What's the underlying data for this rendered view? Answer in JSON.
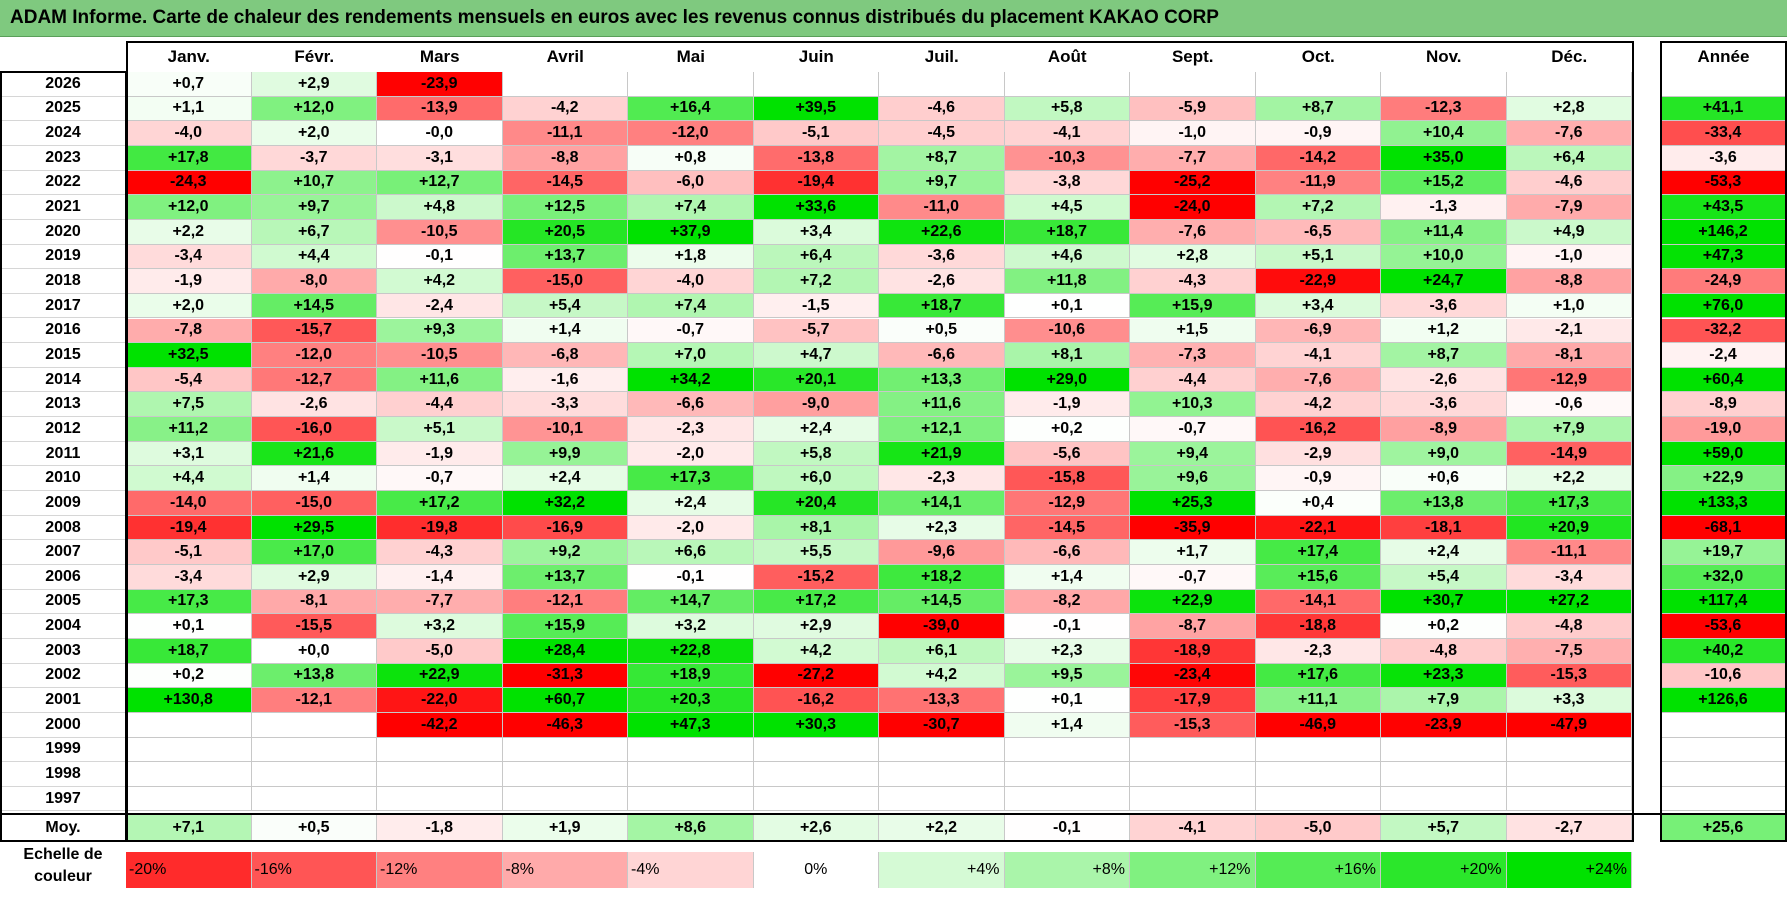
{
  "title": "ADAM Informe. Carte de chaleur des rendements mensuels en euros avec les revenus connus distribués du placement KAKAO CORP",
  "colors": {
    "title_bg": "#7fc97f",
    "neg_max": "#ff0000",
    "pos_max": "#00e000",
    "neutral": "#ffffff"
  },
  "chart_data": {
    "type": "heatmap",
    "title": "ADAM Informe. Carte de chaleur des rendements mensuels en euros avec les revenus connus distribués du placement KAKAO CORP",
    "months": [
      "Janv.",
      "Févr.",
      "Mars",
      "Avril",
      "Mai",
      "Juin",
      "Juil.",
      "Août",
      "Sept.",
      "Oct.",
      "Nov.",
      "Déc."
    ],
    "annual_header": "Année",
    "rows": [
      {
        "year": "2026",
        "values": [
          "+0,7",
          "+2,9",
          "-23,9",
          "",
          "",
          "",
          "",
          "",
          "",
          "",
          "",
          ""
        ],
        "annual": ""
      },
      {
        "year": "2025",
        "values": [
          "+1,1",
          "+12,0",
          "-13,9",
          "-4,2",
          "+16,4",
          "+39,5",
          "-4,6",
          "+5,8",
          "-5,9",
          "+8,7",
          "-12,3",
          "+2,8"
        ],
        "annual": "+41,1"
      },
      {
        "year": "2024",
        "values": [
          "-4,0",
          "+2,0",
          "-0,0",
          "-11,1",
          "-12,0",
          "-5,1",
          "-4,5",
          "-4,1",
          "-1,0",
          "-0,9",
          "+10,4",
          "-7,6"
        ],
        "annual": "-33,4"
      },
      {
        "year": "2023",
        "values": [
          "+17,8",
          "-3,7",
          "-3,1",
          "-8,8",
          "+0,8",
          "-13,8",
          "+8,7",
          "-10,3",
          "-7,7",
          "-14,2",
          "+35,0",
          "+6,4"
        ],
        "annual": "-3,6"
      },
      {
        "year": "2022",
        "values": [
          "-24,3",
          "+10,7",
          "+12,7",
          "-14,5",
          "-6,0",
          "-19,4",
          "+9,7",
          "-3,8",
          "-25,2",
          "-11,9",
          "+15,2",
          "-4,6"
        ],
        "annual": "-53,3"
      },
      {
        "year": "2021",
        "values": [
          "+12,0",
          "+9,7",
          "+4,8",
          "+12,5",
          "+7,4",
          "+33,6",
          "-11,0",
          "+4,5",
          "-24,0",
          "+7,2",
          "-1,3",
          "-7,9"
        ],
        "annual": "+43,5"
      },
      {
        "year": "2020",
        "values": [
          "+2,2",
          "+6,7",
          "-10,5",
          "+20,5",
          "+37,9",
          "+3,4",
          "+22,6",
          "+18,7",
          "-7,6",
          "-6,5",
          "+11,4",
          "+4,9"
        ],
        "annual": "+146,2"
      },
      {
        "year": "2019",
        "values": [
          "-3,4",
          "+4,4",
          "-0,1",
          "+13,7",
          "+1,8",
          "+6,4",
          "-3,6",
          "+4,6",
          "+2,8",
          "+5,1",
          "+10,0",
          "-1,0"
        ],
        "annual": "+47,3"
      },
      {
        "year": "2018",
        "values": [
          "-1,9",
          "-8,0",
          "+4,2",
          "-15,0",
          "-4,0",
          "+7,2",
          "-2,6",
          "+11,8",
          "-4,3",
          "-22,9",
          "+24,7",
          "-8,8"
        ],
        "annual": "-24,9"
      },
      {
        "year": "2017",
        "values": [
          "+2,0",
          "+14,5",
          "-2,4",
          "+5,4",
          "+7,4",
          "-1,5",
          "+18,7",
          "+0,1",
          "+15,9",
          "+3,4",
          "-3,6",
          "+1,0"
        ],
        "annual": "+76,0"
      },
      {
        "year": "2016",
        "values": [
          "-7,8",
          "-15,7",
          "+9,3",
          "+1,4",
          "-0,7",
          "-5,7",
          "+0,5",
          "-10,6",
          "+1,5",
          "-6,9",
          "+1,2",
          "-2,1"
        ],
        "annual": "-32,2"
      },
      {
        "year": "2015",
        "values": [
          "+32,5",
          "-12,0",
          "-10,5",
          "-6,8",
          "+7,0",
          "+4,7",
          "-6,6",
          "+8,1",
          "-7,3",
          "-4,1",
          "+8,7",
          "-8,1"
        ],
        "annual": "-2,4"
      },
      {
        "year": "2014",
        "values": [
          "-5,4",
          "-12,7",
          "+11,6",
          "-1,6",
          "+34,2",
          "+20,1",
          "+13,3",
          "+29,0",
          "-4,4",
          "-7,6",
          "-2,6",
          "-12,9"
        ],
        "annual": "+60,4"
      },
      {
        "year": "2013",
        "values": [
          "+7,5",
          "-2,6",
          "-4,4",
          "-3,3",
          "-6,6",
          "-9,0",
          "+11,6",
          "-1,9",
          "+10,3",
          "-4,2",
          "-3,6",
          "-0,6"
        ],
        "annual": "-8,9"
      },
      {
        "year": "2012",
        "values": [
          "+11,2",
          "-16,0",
          "+5,1",
          "-10,1",
          "-2,3",
          "+2,4",
          "+12,1",
          "+0,2",
          "-0,7",
          "-16,2",
          "-8,9",
          "+7,9"
        ],
        "annual": "-19,0"
      },
      {
        "year": "2011",
        "values": [
          "+3,1",
          "+21,6",
          "-1,9",
          "+9,9",
          "-2,0",
          "+5,8",
          "+21,9",
          "-5,6",
          "+9,4",
          "-2,9",
          "+9,0",
          "-14,9"
        ],
        "annual": "+59,0"
      },
      {
        "year": "2010",
        "values": [
          "+4,4",
          "+1,4",
          "-0,7",
          "+2,4",
          "+17,3",
          "+6,0",
          "-2,3",
          "-15,8",
          "+9,6",
          "-0,9",
          "+0,6",
          "+2,2"
        ],
        "annual": "+22,9"
      },
      {
        "year": "2009",
        "values": [
          "-14,0",
          "-15,0",
          "+17,2",
          "+32,2",
          "+2,4",
          "+20,4",
          "+14,1",
          "-12,9",
          "+25,3",
          "+0,4",
          "+13,8",
          "+17,3"
        ],
        "annual": "+133,3"
      },
      {
        "year": "2008",
        "values": [
          "-19,4",
          "+29,5",
          "-19,8",
          "-16,9",
          "-2,0",
          "+8,1",
          "+2,3",
          "-14,5",
          "-35,9",
          "-22,1",
          "-18,1",
          "+20,9"
        ],
        "annual": "-68,1"
      },
      {
        "year": "2007",
        "values": [
          "-5,1",
          "+17,0",
          "-4,3",
          "+9,2",
          "+6,6",
          "+5,5",
          "-9,6",
          "-6,6",
          "+1,7",
          "+17,4",
          "+2,4",
          "-11,1"
        ],
        "annual": "+19,7"
      },
      {
        "year": "2006",
        "values": [
          "-3,4",
          "+2,9",
          "-1,4",
          "+13,7",
          "-0,1",
          "-15,2",
          "+18,2",
          "+1,4",
          "-0,7",
          "+15,6",
          "+5,4",
          "-3,4"
        ],
        "annual": "+32,0"
      },
      {
        "year": "2005",
        "values": [
          "+17,3",
          "-8,1",
          "-7,7",
          "-12,1",
          "+14,7",
          "+17,2",
          "+14,5",
          "-8,2",
          "+22,9",
          "-14,1",
          "+30,7",
          "+27,2"
        ],
        "annual": "+117,4"
      },
      {
        "year": "2004",
        "values": [
          "+0,1",
          "-15,5",
          "+3,2",
          "+15,9",
          "+3,2",
          "+2,9",
          "-39,0",
          "-0,1",
          "-8,7",
          "-18,8",
          "+0,2",
          "-4,8"
        ],
        "annual": "-53,6"
      },
      {
        "year": "2003",
        "values": [
          "+18,7",
          "+0,0",
          "-5,0",
          "+28,4",
          "+22,8",
          "+4,2",
          "+6,1",
          "+2,3",
          "-18,9",
          "-2,3",
          "-4,8",
          "-7,5"
        ],
        "annual": "+40,2"
      },
      {
        "year": "2002",
        "values": [
          "+0,2",
          "+13,8",
          "+22,9",
          "-31,3",
          "+18,9",
          "-27,2",
          "+4,2",
          "+9,5",
          "-23,4",
          "+17,6",
          "+23,3",
          "-15,3"
        ],
        "annual": "-10,6"
      },
      {
        "year": "2001",
        "values": [
          "+130,8",
          "-12,1",
          "-22,0",
          "+60,7",
          "+20,3",
          "-16,2",
          "-13,3",
          "+0,1",
          "-17,9",
          "+11,1",
          "+7,9",
          "+3,3"
        ],
        "annual": "+126,6"
      },
      {
        "year": "2000",
        "values": [
          "",
          "",
          "-42,2",
          "-46,3",
          "+47,3",
          "+30,3",
          "-30,7",
          "+1,4",
          "-15,3",
          "-46,9",
          "-23,9",
          "-47,9"
        ],
        "annual": ""
      },
      {
        "year": "1999",
        "values": [
          "",
          "",
          "",
          "",
          "",
          "",
          "",
          "",
          "",
          "",
          "",
          ""
        ],
        "annual": ""
      },
      {
        "year": "1998",
        "values": [
          "",
          "",
          "",
          "",
          "",
          "",
          "",
          "",
          "",
          "",
          "",
          ""
        ],
        "annual": ""
      },
      {
        "year": "1997",
        "values": [
          "",
          "",
          "",
          "",
          "",
          "",
          "",
          "",
          "",
          "",
          "",
          ""
        ],
        "annual": ""
      }
    ],
    "average": {
      "label": "Moy.",
      "values": [
        "+7,1",
        "+0,5",
        "-1,8",
        "+1,9",
        "+8,6",
        "+2,6",
        "+2,2",
        "-0,1",
        "-4,1",
        "-5,0",
        "+5,7",
        "-2,7"
      ],
      "annual": "+25,6"
    },
    "scale": {
      "label_line1": "Echelle de",
      "label_line2": "couleur",
      "steps": [
        {
          "label": "-20%",
          "value": -20
        },
        {
          "label": "-16%",
          "value": -16
        },
        {
          "label": "-12%",
          "value": -12
        },
        {
          "label": "-8%",
          "value": -8
        },
        {
          "label": "-4%",
          "value": -4
        },
        {
          "label": "0%",
          "value": 0
        },
        {
          "label": "+4%",
          "value": 4
        },
        {
          "label": "+8%",
          "value": 8
        },
        {
          "label": "+12%",
          "value": 12
        },
        {
          "label": "+16%",
          "value": 16
        },
        {
          "label": "+20%",
          "value": 20
        },
        {
          "label": "+24%",
          "value": 24
        }
      ]
    }
  }
}
